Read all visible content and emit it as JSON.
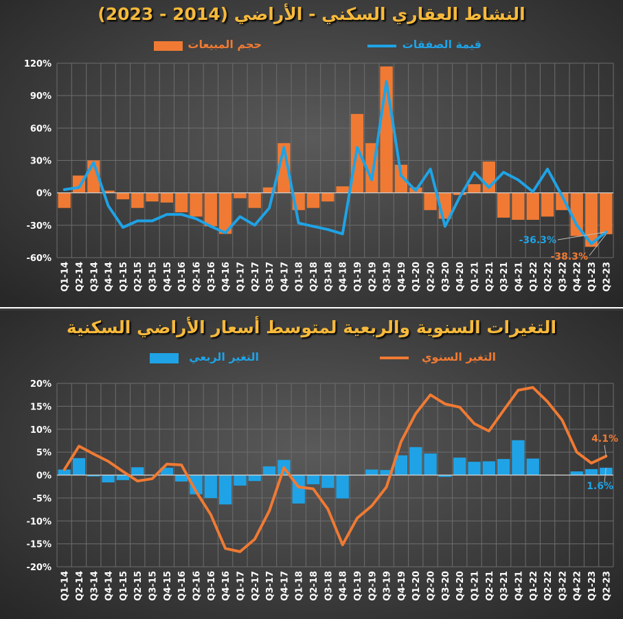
{
  "chart_data": [
    {
      "type": "bar",
      "title": "النشاط العقاري السكني - الأراضي (2014 - 2023)",
      "categories": [
        "Q1-14",
        "Q2-14",
        "Q3-14",
        "Q4-14",
        "Q1-15",
        "Q2-15",
        "Q3-15",
        "Q4-15",
        "Q1-16",
        "Q2-16",
        "Q3-16",
        "Q4-16",
        "Q1-17",
        "Q2-17",
        "Q3-17",
        "Q4-17",
        "Q1-18",
        "Q2-18",
        "Q3-18",
        "Q4-18",
        "Q1-19",
        "Q2-19",
        "Q3-19",
        "Q4-19",
        "Q1-20",
        "Q2-20",
        "Q3-20",
        "Q4-20",
        "Q1-21",
        "Q2-21",
        "Q3-21",
        "Q4-21",
        "Q1-22",
        "Q2-22",
        "Q3-22",
        "Q4-22",
        "Q1-23",
        "Q2-23"
      ],
      "yticks": [
        "120%",
        "90%",
        "60%",
        "30%",
        "0%",
        "-30%",
        "-60%"
      ],
      "ylim": [
        -60,
        120
      ],
      "series": [
        {
          "name": "حجم المبيعات",
          "kind": "bar",
          "color": "#f07a33",
          "values": [
            -14,
            16,
            30,
            2,
            -6,
            -14,
            -8,
            -9,
            -18,
            -22,
            -31,
            -38,
            -5,
            -14,
            5,
            46,
            -16,
            -14,
            -8,
            6,
            73,
            46,
            117,
            26,
            5,
            -16,
            -24,
            -2,
            8,
            29,
            -23,
            -25,
            -25,
            -22,
            -16,
            -40,
            -50,
            -38.3
          ]
        },
        {
          "name": "قيمة الصفقات",
          "kind": "line",
          "color": "#1fa3e6",
          "values": [
            3,
            5,
            28,
            -12,
            -32,
            -26,
            -26,
            -20,
            -20,
            -24,
            -31,
            -37,
            -22,
            -30,
            -14,
            42,
            -28,
            -31,
            -34,
            -38,
            42,
            12,
            103,
            16,
            2,
            22,
            -31,
            -4,
            19,
            5,
            19,
            12,
            1,
            22,
            -3,
            -30,
            -47,
            -36.3
          ]
        }
      ],
      "annotations": {
        "line_last": "-36.3%",
        "bar_last": "-38.3%"
      }
    },
    {
      "type": "bar",
      "title": "التغيرات السنوية والربعية لمتوسط أسعار الأراضي السكنية",
      "categories": [
        "Q1-14",
        "Q2-14",
        "Q3-14",
        "Q4-14",
        "Q1-15",
        "Q2-15",
        "Q3-15",
        "Q4-15",
        "Q1-16",
        "Q2-16",
        "Q3-16",
        "Q4-16",
        "Q1-17",
        "Q2-17",
        "Q3-17",
        "Q4-17",
        "Q1-18",
        "Q2-18",
        "Q3-18",
        "Q4-18",
        "Q1-19",
        "Q2-19",
        "Q3-19",
        "Q4-19",
        "Q1-20",
        "Q2-20",
        "Q3-20",
        "Q4-20",
        "Q1-21",
        "Q2-21",
        "Q3-21",
        "Q4-21",
        "Q1-22",
        "Q2-22",
        "Q3-22",
        "Q4-22",
        "Q1-23",
        "Q2-23"
      ],
      "yticks": [
        "20%",
        "15%",
        "10%",
        "5%",
        "0%",
        "-5%",
        "-10%",
        "-15%",
        "-20%"
      ],
      "ylim": [
        -20,
        20
      ],
      "series": [
        {
          "name": "التغير الربعي",
          "kind": "bar",
          "color": "#1fa3e6",
          "values": [
            1.2,
            3.7,
            -0.3,
            -1.6,
            -1.1,
            1.7,
            0,
            1.6,
            -1.4,
            -4.2,
            -5.0,
            -6.4,
            -2.3,
            -1.3,
            1.9,
            3.3,
            -6.2,
            -2.0,
            -2.8,
            -5.1,
            0,
            1.2,
            1.1,
            4.3,
            6.1,
            4.7,
            -0.4,
            3.8,
            2.9,
            3.0,
            3.5,
            7.6,
            3.6,
            0,
            0,
            0.8,
            1.3,
            1.6
          ]
        },
        {
          "name": "التغير السنوي",
          "kind": "line",
          "color": "#f07a33",
          "values": [
            1.2,
            6.3,
            4.6,
            3.0,
            0.8,
            -1.3,
            -0.8,
            2.4,
            2.2,
            -3.6,
            -8.6,
            -16.0,
            -16.7,
            -14.0,
            -7.8,
            1.6,
            -2.6,
            -3.0,
            -7.4,
            -15.2,
            -9.4,
            -6.7,
            -2.6,
            7.3,
            13.4,
            17.5,
            15.5,
            14.8,
            11.2,
            9.6,
            14.1,
            18.5,
            19.1,
            16.0,
            12.0,
            5.0,
            2.6,
            4.1
          ]
        }
      ],
      "annotations": {
        "line_last": "4.1%",
        "bar_last": "1.6%"
      }
    }
  ]
}
